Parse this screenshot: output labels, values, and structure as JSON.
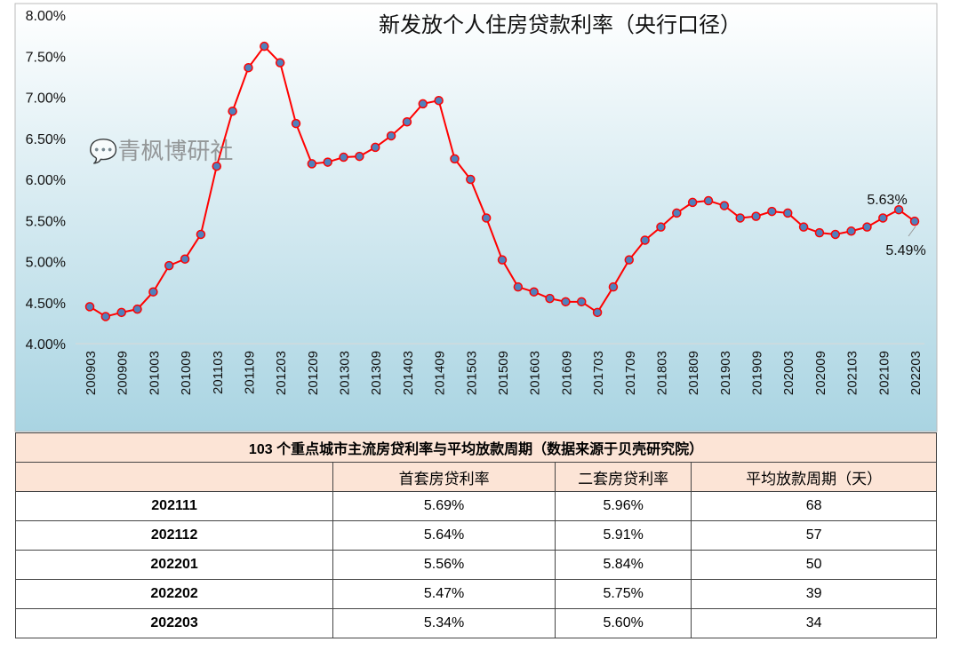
{
  "chart_data": {
    "type": "line",
    "title": "新发放个人住房贷款利率（央行口径）",
    "ylim": [
      4.0,
      8.0
    ],
    "yticks": [
      "4.00%",
      "4.50%",
      "5.00%",
      "5.50%",
      "6.00%",
      "6.50%",
      "7.00%",
      "7.50%",
      "8.00%"
    ],
    "xtick_labels": [
      "200903",
      "200909",
      "201003",
      "201009",
      "201103",
      "201109",
      "201203",
      "201209",
      "201303",
      "201309",
      "201403",
      "201409",
      "201503",
      "201509",
      "201603",
      "201609",
      "201703",
      "201709",
      "201803",
      "201809",
      "201903",
      "201909",
      "202003",
      "202009",
      "202103",
      "202109",
      "202203"
    ],
    "x": [
      "200903",
      "200906",
      "200909",
      "200912",
      "201003",
      "201006",
      "201009",
      "201012",
      "201103",
      "201106",
      "201109",
      "201112",
      "201203",
      "201206",
      "201209",
      "201212",
      "201303",
      "201306",
      "201309",
      "201312",
      "201403",
      "201406",
      "201409",
      "201412",
      "201503",
      "201506",
      "201509",
      "201512",
      "201603",
      "201606",
      "201609",
      "201612",
      "201703",
      "201706",
      "201709",
      "201712",
      "201803",
      "201806",
      "201809",
      "201812",
      "201903",
      "201906",
      "201909",
      "201912",
      "202003",
      "202006",
      "202009",
      "202012",
      "202103",
      "202106",
      "202109",
      "202112",
      "202203"
    ],
    "values": [
      4.45,
      4.33,
      4.38,
      4.42,
      4.63,
      4.95,
      5.03,
      5.33,
      6.16,
      6.83,
      7.36,
      7.62,
      7.42,
      6.68,
      6.19,
      6.21,
      6.27,
      6.28,
      6.39,
      6.53,
      6.7,
      6.92,
      6.96,
      6.25,
      6.0,
      5.53,
      5.02,
      4.69,
      4.63,
      4.55,
      4.51,
      4.51,
      4.38,
      4.69,
      5.02,
      5.26,
      5.42,
      5.59,
      5.72,
      5.74,
      5.68,
      5.53,
      5.55,
      5.61,
      5.59,
      5.42,
      5.35,
      5.33,
      5.37,
      5.42,
      5.53,
      5.63,
      5.49
    ],
    "annotations": [
      "5.63%",
      "5.49%"
    ],
    "line_color": "#ff0000",
    "marker_color": "#4f81bd",
    "grid": false
  },
  "table": {
    "title": "103 个重点城市主流房贷利率与平均放款周期（数据来源于贝壳研究院）",
    "headers": [
      "",
      "首套房贷利率",
      "二套房贷利率",
      "平均放款周期（天）"
    ],
    "rows": [
      [
        "202111",
        "5.69%",
        "5.96%",
        "68"
      ],
      [
        "202112",
        "5.64%",
        "5.91%",
        "57"
      ],
      [
        "202201",
        "5.56%",
        "5.84%",
        "50"
      ],
      [
        "202202",
        "5.47%",
        "5.75%",
        "39"
      ],
      [
        "202203",
        "5.34%",
        "5.60%",
        "34"
      ]
    ]
  },
  "watermark": "青枫博研社"
}
